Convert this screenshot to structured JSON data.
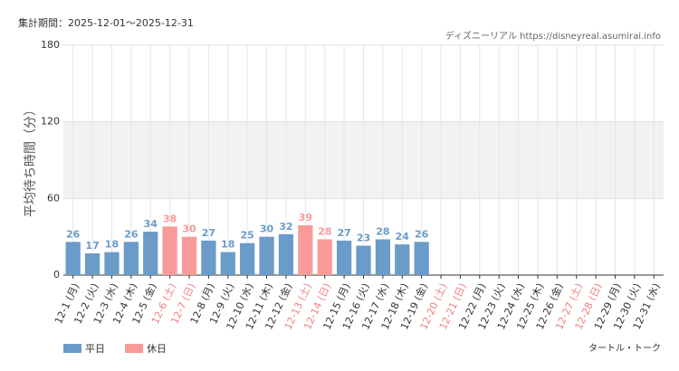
{
  "chart_data": {
    "type": "bar",
    "title": "集計期間：2025-12-01～2025-12-31",
    "source": "ディズニーリアル https://disneyreal.asumirai.info",
    "attraction": "タートル・トーク",
    "y_label": "平均待ち時間（分）",
    "categories": [
      "12-1 (月)",
      "12-2 (火)",
      "12-3 (水)",
      "12-4 (木)",
      "12-5 (金)",
      "12-6 (土)",
      "12-7 (日)",
      "12-8 (月)",
      "12-9 (火)",
      "12-10 (水)",
      "12-11 (木)",
      "12-12 (金)",
      "12-13 (土)",
      "12-14 (日)",
      "12-15 (月)",
      "12-16 (火)",
      "12-17 (水)",
      "12-18 (木)",
      "12-19 (金)",
      "12-20 (土)",
      "12-21 (日)",
      "12-22 (月)",
      "12-23 (火)",
      "12-24 (水)",
      "12-25 (木)",
      "12-26 (金)",
      "12-27 (土)",
      "12-28 (日)",
      "12-29 (月)",
      "12-30 (火)",
      "12-31 (水)"
    ],
    "category_label_colors": [
      "#333",
      "#333",
      "#333",
      "#333",
      "#333",
      "#f08080",
      "#f08080",
      "#333",
      "#333",
      "#333",
      "#333",
      "#333",
      "#f08080",
      "#f08080",
      "#333",
      "#333",
      "#333",
      "#333",
      "#333",
      "#f08080",
      "#f08080",
      "#333",
      "#333",
      "#333",
      "#333",
      "#333",
      "#f08080",
      "#f08080",
      "#333",
      "#333",
      "#333"
    ],
    "series": [
      {
        "name": "平日",
        "color": "#6b9bc8",
        "values": [
          26,
          17,
          18,
          26,
          34,
          null,
          null,
          27,
          18,
          25,
          30,
          32,
          null,
          null,
          27,
          23,
          28,
          24,
          26,
          null,
          null,
          null,
          null,
          null,
          null,
          null,
          null,
          null,
          null,
          null,
          null
        ]
      },
      {
        "name": "休日",
        "color": "#f99a9a",
        "values": [
          null,
          null,
          null,
          null,
          null,
          38,
          30,
          null,
          null,
          null,
          null,
          null,
          39,
          28,
          null,
          null,
          null,
          null,
          null,
          null,
          null,
          null,
          null,
          null,
          null,
          null,
          null,
          null,
          null,
          null,
          null
        ]
      }
    ],
    "ylim": [
      0,
      180
    ],
    "yticks": [
      0,
      60,
      120,
      180
    ],
    "grid": true,
    "band": [
      60,
      120
    ],
    "band_color": "#f2f2f2"
  }
}
